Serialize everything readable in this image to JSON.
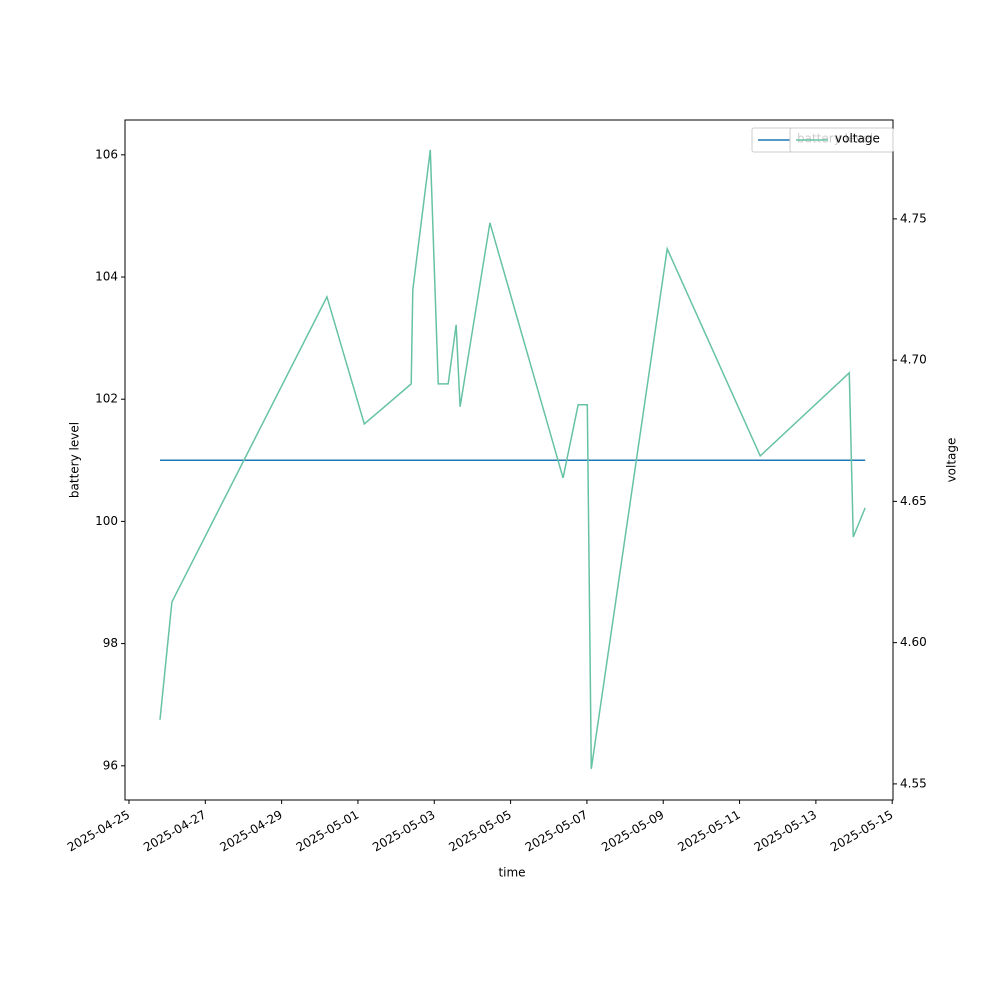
{
  "chart_data": {
    "type": "line",
    "x_label": "time",
    "y_label": "battery level",
    "y2_label": "voltage",
    "x": [
      "2025-04-25T19:30",
      "2025-04-26T03:00",
      "2025-04-30T04:30",
      "2025-05-01T04:00",
      "2025-05-02T09:30",
      "2025-05-02T10:30",
      "2025-05-02T21:30",
      "2025-05-03T02:30",
      "2025-05-03T08:45",
      "2025-05-03T13:45",
      "2025-05-03T16:15",
      "2025-05-04T11:00",
      "2025-05-06T09:00",
      "2025-05-06T18:30",
      "2025-05-07T00:15",
      "2025-05-07T02:45",
      "2025-05-09T02:30",
      "2025-05-11T13:00",
      "2025-05-13T21:00",
      "2025-05-13T23:30",
      "2025-05-14T07:00"
    ],
    "series": [
      {
        "name": "battery level",
        "color": "#1f77b4",
        "values": [
          101,
          101,
          101,
          101,
          101,
          101,
          101,
          101,
          101,
          101,
          101,
          101,
          101,
          101,
          101,
          101,
          101,
          101,
          101,
          101,
          101
        ]
      },
      {
        "name": "voltage",
        "color": "#66c2a5",
        "axis": "y2",
        "values": [
          4.5727,
          4.6144,
          4.7224,
          4.6774,
          4.6916,
          4.7249,
          4.7744,
          4.6916,
          4.6916,
          4.7125,
          4.6835,
          4.7486,
          4.6583,
          4.6842,
          4.6842,
          4.5553,
          4.7394,
          4.6661,
          4.6955,
          4.6374,
          4.6477
        ]
      }
    ],
    "xlim": [
      "2025-04-24T21:30",
      "2025-05-15T00:30"
    ],
    "xticks": [
      "2025-04-25",
      "2025-04-27",
      "2025-04-29",
      "2025-05-01",
      "2025-05-03",
      "2025-05-05",
      "2025-05-07",
      "2025-05-09",
      "2025-05-11",
      "2025-05-13",
      "2025-05-15"
    ],
    "ylim": [
      95.44,
      106.57
    ],
    "yticks": [
      96,
      98,
      100,
      102,
      104,
      106
    ],
    "y2lim": [
      4.5443,
      4.785
    ],
    "y2ticks": [
      {
        "value": 4.55,
        "label": "4.55"
      },
      {
        "value": 4.6,
        "label": "4.60"
      },
      {
        "value": 4.65,
        "label": "4.65"
      },
      {
        "value": 4.7,
        "label": "4.70"
      },
      {
        "value": 4.75,
        "label": "4.75"
      }
    ],
    "legend": "upper right"
  }
}
